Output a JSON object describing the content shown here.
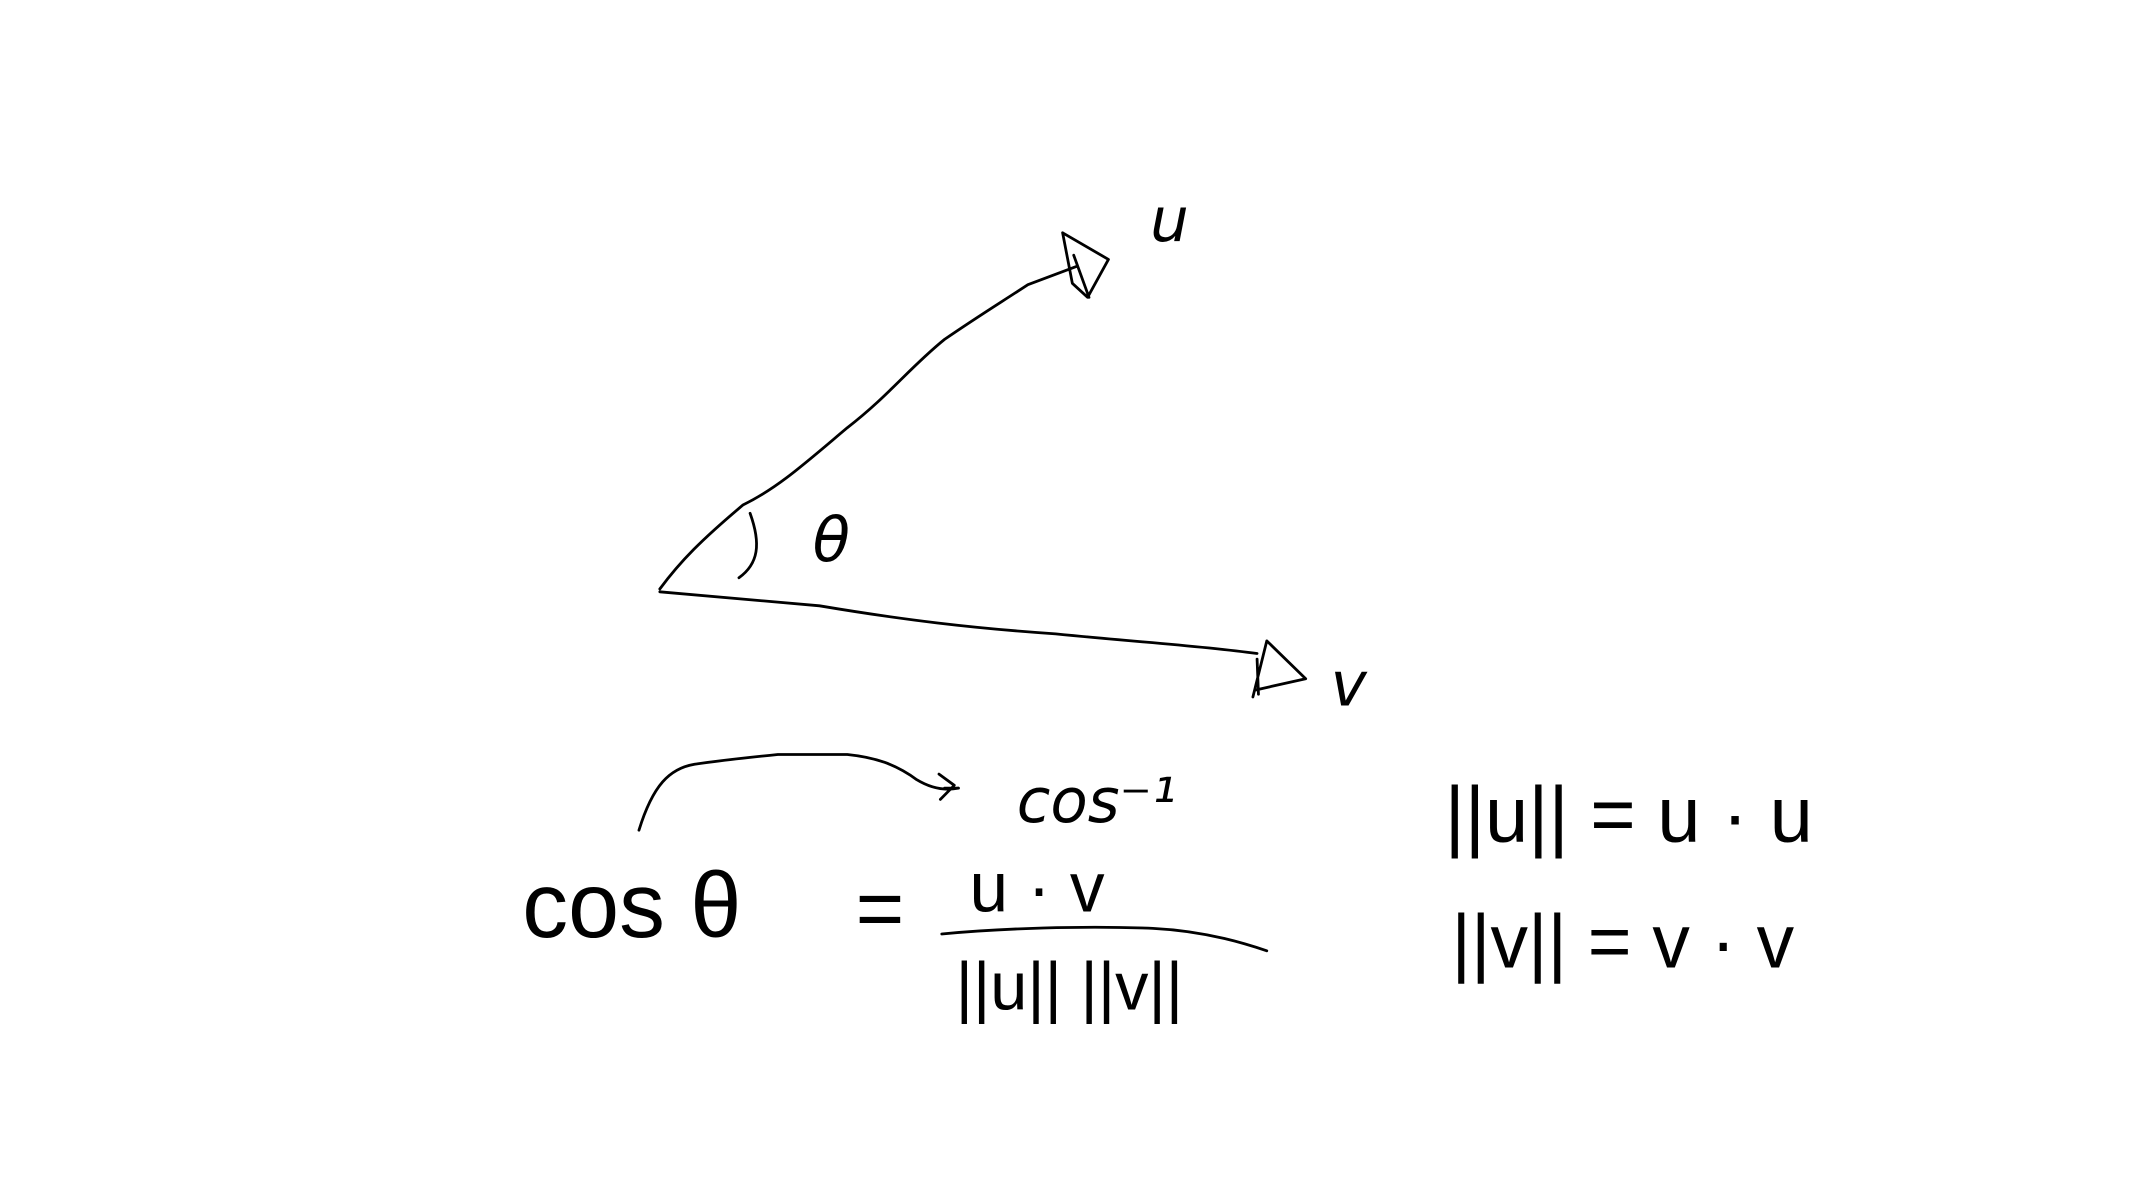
{
  "ink_color": "#000000",
  "background_color": "#ffffff",
  "labels": {
    "vector_u": "u",
    "vector_v": "v",
    "angle": "θ"
  },
  "equations": {
    "cosine_formula": {
      "lhs": "cos θ",
      "equals": "=",
      "numerator": "u · v",
      "denominator": "||u|| ||v||"
    },
    "inverse_note": "cos⁻¹",
    "norm_u": "||u|| = u · u",
    "norm_v": "||v|| = v · v"
  }
}
